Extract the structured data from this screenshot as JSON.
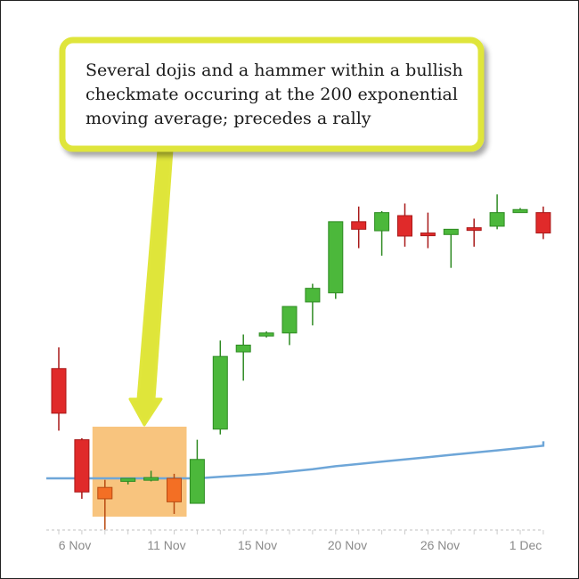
{
  "chart_data": {
    "type": "candlestick",
    "x_tick_labels": [
      "6 Nov",
      "11 Nov",
      "15 Nov",
      "20 Nov",
      "26 Nov",
      "1 Dec"
    ],
    "candles": [
      {
        "open": 1.45,
        "close": 0.86,
        "high": 1.73,
        "low": 0.63,
        "color": "red"
      },
      {
        "open": 0.51,
        "close": -0.18,
        "high": 0.53,
        "low": -0.27,
        "color": "red"
      },
      {
        "open": -0.12,
        "close": -0.27,
        "high": -0.02,
        "low": -0.68,
        "color": "orange"
      },
      {
        "open": 0.0,
        "close": -0.04,
        "high": 0.0,
        "low": -0.08,
        "color": "green"
      },
      {
        "open": 0.01,
        "close": -0.02,
        "high": 0.1,
        "low": -0.04,
        "color": "green"
      },
      {
        "open": 0.0,
        "close": -0.31,
        "high": 0.06,
        "low": -0.47,
        "color": "orange"
      },
      {
        "open": 0.25,
        "close": -0.33,
        "high": 0.51,
        "low": -0.33,
        "color": "green"
      },
      {
        "open": 1.61,
        "close": 0.65,
        "high": 1.82,
        "low": 0.58,
        "color": "green"
      },
      {
        "open": 1.76,
        "close": 1.67,
        "high": 1.9,
        "low": 1.29,
        "color": "green"
      },
      {
        "open": 1.92,
        "close": 1.88,
        "high": 1.94,
        "low": 1.86,
        "color": "green"
      },
      {
        "open": 2.27,
        "close": 1.92,
        "high": 2.27,
        "low": 1.76,
        "color": "green"
      },
      {
        "open": 2.51,
        "close": 2.33,
        "high": 2.57,
        "low": 2.02,
        "color": "green"
      },
      {
        "open": 3.39,
        "close": 2.45,
        "high": 3.39,
        "low": 2.37,
        "color": "green"
      },
      {
        "open": 3.39,
        "close": 3.29,
        "high": 3.59,
        "low": 3.04,
        "color": "red"
      },
      {
        "open": 3.51,
        "close": 3.27,
        "high": 3.53,
        "low": 2.94,
        "color": "green"
      },
      {
        "open": 3.47,
        "close": 3.2,
        "high": 3.63,
        "low": 3.06,
        "color": "red"
      },
      {
        "open": 3.24,
        "close": 3.22,
        "high": 3.51,
        "low": 3.04,
        "color": "red"
      },
      {
        "open": 3.22,
        "close": 3.29,
        "high": 3.29,
        "low": 2.78,
        "color": "green"
      },
      {
        "open": 3.31,
        "close": 3.29,
        "high": 3.43,
        "low": 3.06,
        "color": "red"
      },
      {
        "open": 3.51,
        "close": 3.33,
        "high": 3.75,
        "low": 3.29,
        "color": "green"
      },
      {
        "open": 3.55,
        "close": 3.51,
        "high": 3.57,
        "low": 3.51,
        "color": "green"
      },
      {
        "open": 3.51,
        "close": 3.24,
        "high": 3.59,
        "low": 3.16,
        "color": "red"
      }
    ],
    "ema200": {
      "label": "",
      "color": "#6ea6d8",
      "values": [
        0.0,
        0.0,
        0.0,
        0.0,
        0.0,
        0.0,
        0.0,
        0.02,
        0.04,
        0.06,
        0.09,
        0.12,
        0.16,
        0.19,
        0.22,
        0.25,
        0.28,
        0.31,
        0.34,
        0.37,
        0.4,
        0.43
      ]
    },
    "highlight_candle_range": [
      2,
      5
    ],
    "colors": {
      "up": "#4cb83b",
      "down": "#e02a2a",
      "highlighted": "#f36f24",
      "highlight_box": "#f8c47e",
      "callout_border": "#dfe53a"
    }
  },
  "annotation": {
    "lines": [
      "Several dojis and a hammer within a bullish",
      "checkmate occuring at the 200 exponential",
      "moving average; precedes a rally"
    ]
  }
}
